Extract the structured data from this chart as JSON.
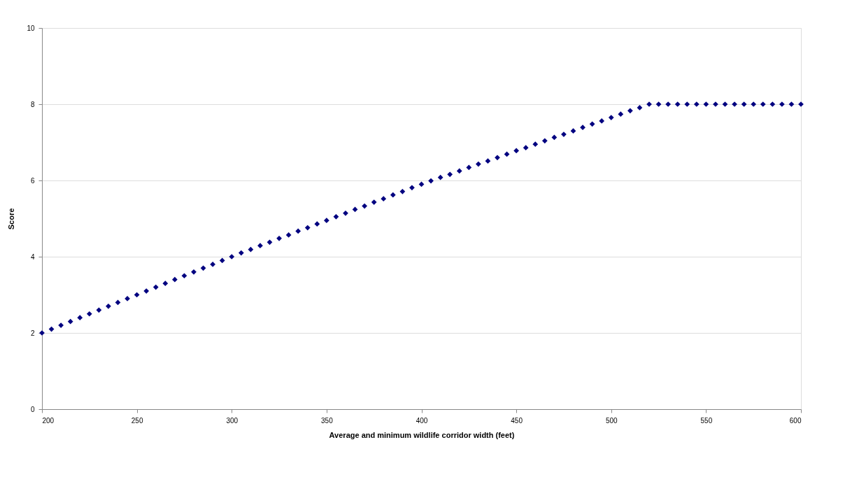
{
  "chart_data": {
    "type": "scatter",
    "xlabel": "Average and minimum wildlife corridor width (feet)",
    "ylabel": "Score",
    "x": [
      200,
      205,
      210,
      215,
      220,
      225,
      230,
      235,
      240,
      245,
      250,
      255,
      260,
      265,
      270,
      275,
      280,
      285,
      290,
      295,
      300,
      305,
      310,
      315,
      320,
      325,
      330,
      335,
      340,
      345,
      350,
      355,
      360,
      365,
      370,
      375,
      380,
      385,
      390,
      395,
      400,
      405,
      410,
      415,
      420,
      425,
      430,
      435,
      440,
      445,
      450,
      455,
      460,
      465,
      470,
      475,
      480,
      485,
      490,
      495,
      500,
      505,
      510,
      515,
      520,
      525,
      530,
      535,
      540,
      545,
      550,
      555,
      560,
      565,
      570,
      575,
      580,
      585,
      590,
      595,
      600
    ],
    "series": [
      {
        "color": "#000080",
        "values": [
          2.0,
          2.1,
          2.2,
          2.3,
          2.4,
          2.5,
          2.6,
          2.7,
          2.8,
          2.9,
          3.0,
          3.1,
          3.2,
          3.3,
          3.4,
          3.5,
          3.6,
          3.7,
          3.8,
          3.9,
          4.0,
          4.1,
          4.19,
          4.29,
          4.38,
          4.48,
          4.57,
          4.67,
          4.76,
          4.86,
          4.95,
          5.05,
          5.14,
          5.24,
          5.33,
          5.43,
          5.52,
          5.62,
          5.71,
          5.81,
          5.9,
          5.99,
          6.08,
          6.16,
          6.25,
          6.34,
          6.43,
          6.51,
          6.6,
          6.69,
          6.78,
          6.86,
          6.95,
          7.04,
          7.13,
          7.21,
          7.3,
          7.39,
          7.48,
          7.56,
          7.65,
          7.74,
          7.83,
          7.91,
          8.0,
          8.0,
          8.0,
          8.0,
          8.0,
          8.0,
          8.0,
          8.0,
          8.0,
          8.0,
          8.0,
          8.0,
          8.0,
          8.0,
          8.0,
          8.0,
          8.0
        ]
      }
    ],
    "xlim": [
      200,
      600
    ],
    "xticks": [
      200,
      250,
      300,
      350,
      400,
      450,
      500,
      550,
      600
    ],
    "ylim": [
      0,
      10
    ],
    "yticks": [
      0,
      2,
      4,
      6,
      8,
      10
    ],
    "grid": "y",
    "marker": "diamond",
    "legend": false
  }
}
